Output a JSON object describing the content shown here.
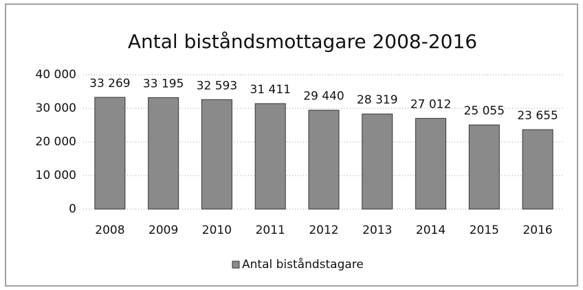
{
  "chart_data": {
    "type": "bar",
    "title": "Antal biståndsmottagare 2008-2016",
    "categories": [
      "2008",
      "2009",
      "2010",
      "2011",
      "2012",
      "2013",
      "2014",
      "2015",
      "2016"
    ],
    "series": [
      {
        "name": "Antal biståndstagare",
        "color": "#8a8a8a",
        "values": [
          33269,
          33195,
          32593,
          31411,
          29440,
          28319,
          27012,
          25055,
          23655
        ],
        "value_labels": [
          "33 269",
          "33 195",
          "32 593",
          "31 411",
          "29 440",
          "28 319",
          "27 012",
          "25 055",
          "23 655"
        ]
      }
    ],
    "ylim": [
      0,
      40000
    ],
    "yticks": [
      0,
      {
        "value": 10000,
        "label": "10 000"
      },
      {
        "value": 20000,
        "label": "20 000"
      },
      {
        "value": 30000,
        "label": "30 000"
      },
      {
        "value": 40000,
        "label": "40 000"
      }
    ],
    "grid": true,
    "legend": "bottom"
  }
}
